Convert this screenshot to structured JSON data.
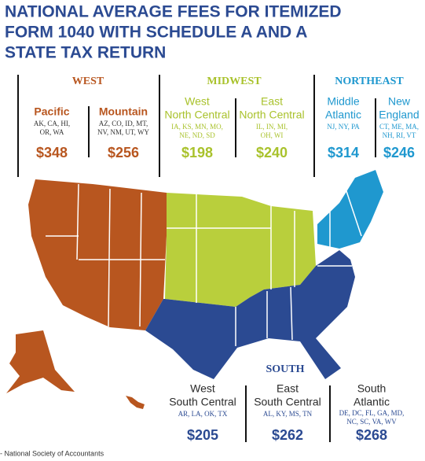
{
  "title": [
    "NATIONAL AVERAGE FEES FOR ITEMIZED",
    "FORM 1040 WITH SCHEDULE A AND A",
    "STATE TAX RETURN"
  ],
  "regions": [
    {
      "name": "WEST",
      "divisions": [
        {
          "name": [
            "Pacific"
          ],
          "states": [
            "AK, CA, HI,",
            "OR, WA"
          ],
          "fee": "$348"
        },
        {
          "name": [
            "Mountain"
          ],
          "states": [
            "AZ, CO, ID, MT,",
            "NV, NM, UT, WY"
          ],
          "fee": "$256"
        }
      ]
    },
    {
      "name": "MIDWEST",
      "divisions": [
        {
          "name": [
            "West",
            "North Central"
          ],
          "states": [
            "IA, KS, MN, MO,",
            "NE, ND, SD"
          ],
          "fee": "$198"
        },
        {
          "name": [
            "East",
            "North Central"
          ],
          "states": [
            "IL, IN, MI,",
            "OH, WI"
          ],
          "fee": "$240"
        }
      ]
    },
    {
      "name": "NORTHEAST",
      "divisions": [
        {
          "name": [
            "Middle",
            "Atlantic"
          ],
          "states": [
            "NJ, NY, PA"
          ],
          "fee": "$314"
        },
        {
          "name": [
            "New",
            "England"
          ],
          "states": [
            "CT, ME, MA,",
            "NH, RI, VT"
          ],
          "fee": "$246"
        }
      ]
    },
    {
      "name": "SOUTH",
      "divisions": [
        {
          "name": [
            "West",
            "South Central"
          ],
          "states": [
            "AR, LA, OK, TX"
          ],
          "fee": "$205"
        },
        {
          "name": [
            "East",
            "South Central"
          ],
          "states": [
            "AL, KY, MS, TN"
          ],
          "fee": "$262"
        },
        {
          "name": [
            "South",
            "Atlantic"
          ],
          "states": [
            "DE, DC, FL, GA, MD,",
            "NC, SC, VA, WV"
          ],
          "fee": "$268"
        }
      ]
    }
  ],
  "source": "- National Society of Accountants"
}
